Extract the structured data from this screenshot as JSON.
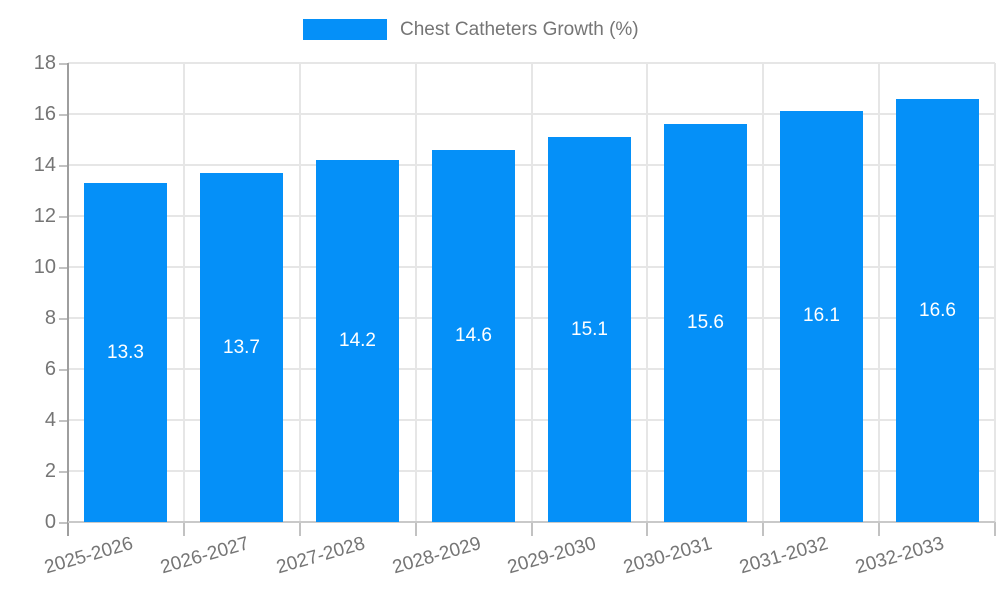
{
  "legend": {
    "label": "Chest Catheters Growth (%)"
  },
  "chart_data": {
    "type": "bar",
    "title": "",
    "categories": [
      "2025-2026",
      "2026-2027",
      "2027-2028",
      "2028-2029",
      "2029-2030",
      "2030-2031",
      "2031-2032",
      "2032-2033"
    ],
    "series": [
      {
        "name": "Chest Catheters Growth (%)",
        "values": [
          13.3,
          13.7,
          14.2,
          14.6,
          15.1,
          15.6,
          16.1,
          16.6
        ]
      }
    ],
    "bar_labels": [
      "13.3",
      "13.7",
      "14.2",
      "14.6",
      "15.1",
      "15.6",
      "16.1",
      "16.6"
    ],
    "xlabel": "",
    "ylabel": "",
    "ylim": [
      0,
      18
    ],
    "ytick_step": 2,
    "ytick_labels": [
      "0",
      "2",
      "4",
      "6",
      "8",
      "10",
      "12",
      "14",
      "16",
      "18"
    ],
    "grid": true,
    "legend_position": "top-center",
    "x_label_rotation_deg": -16
  },
  "colors": {
    "bar": "#0590f8",
    "bar_label_text": "#ffffff",
    "axis_text": "#757575",
    "legend_text": "#757575",
    "grid_line": "#e6e6e6",
    "axis_line_y": "#9e9e9e",
    "axis_line_x": "#c9c9c9",
    "tick_line": "#c2c2c2",
    "background": "#ffffff"
  }
}
